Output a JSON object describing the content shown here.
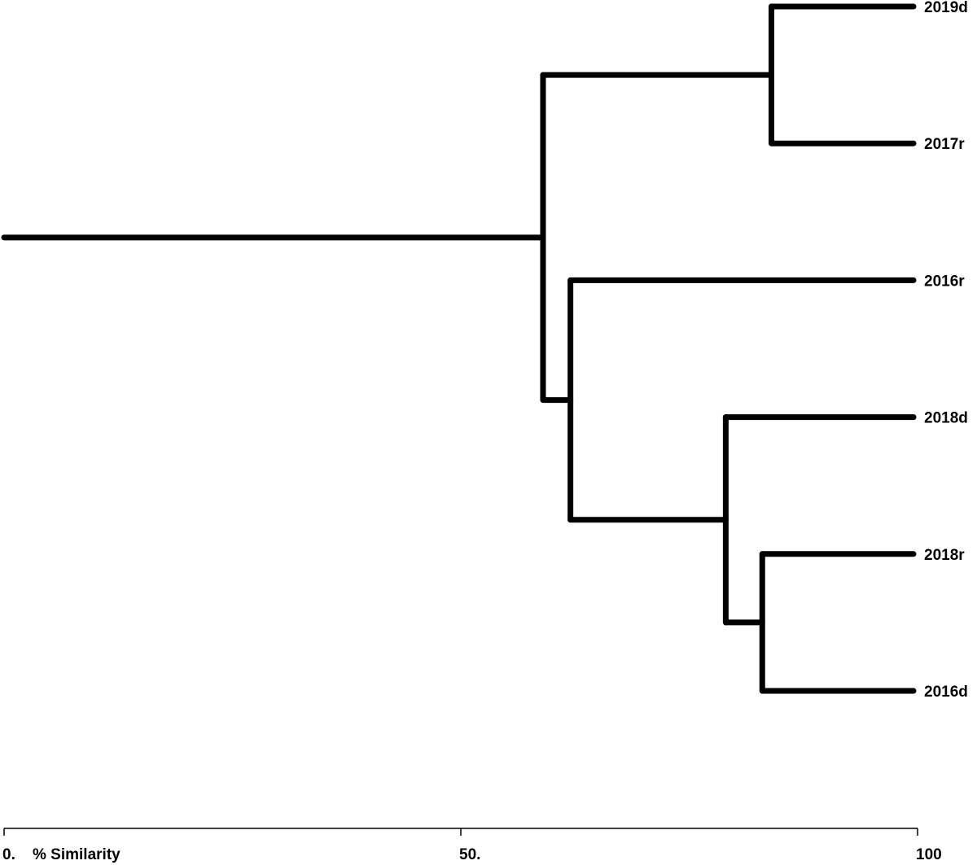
{
  "chart_data": {
    "type": "dendrogram",
    "x_label": "% Similarity",
    "xlim": [
      0,
      100
    ],
    "xticks": [
      {
        "value": 0,
        "label": "0."
      },
      {
        "value": 50,
        "label": "50."
      },
      100
    ],
    "color": "#000000",
    "tree": {
      "similarity": 59,
      "children": [
        {
          "similarity": 84,
          "children": [
            "2019d",
            "2017r"
          ]
        },
        {
          "similarity": 62,
          "children": [
            "2016r",
            {
              "similarity": 79,
              "children": [
                "2018d",
                {
                  "similarity": 83,
                  "children": [
                    "2018r",
                    "2016d"
                  ]
                }
              ]
            }
          ]
        }
      ]
    }
  }
}
